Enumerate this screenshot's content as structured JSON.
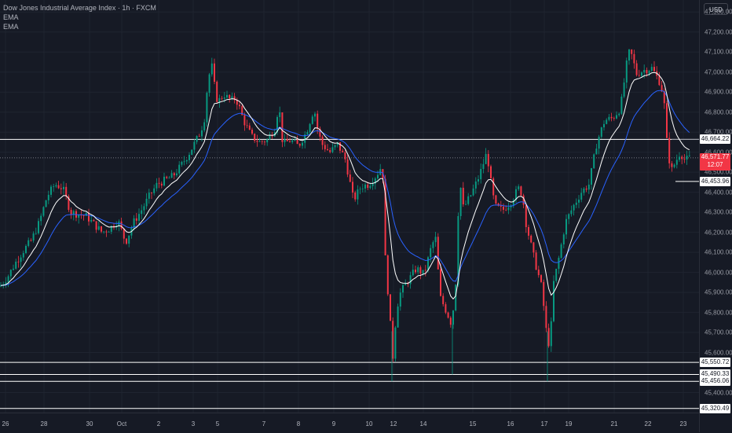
{
  "legend": {
    "title": "Dow Jones Industrial Average Index · 1h · FXCM",
    "ema1": "EMA",
    "ema2": "EMA"
  },
  "currency_button": "USD",
  "price_axis": {
    "ticks": [
      "47,300.00",
      "47,200.00",
      "47,100.00",
      "47,000.00",
      "46,900.00",
      "46,800.00",
      "46,700.00",
      "46,600.00",
      "46,500.00",
      "46,400.00",
      "46,300.00",
      "46,200.00",
      "46,100.00",
      "46,000.00",
      "45,900.00",
      "45,800.00",
      "45,700.00",
      "45,600.00",
      "45,400.00"
    ],
    "level_labels": [
      "46,664.22",
      "46,453.96",
      "45,550.72",
      "45,490.33",
      "45,456.06",
      "45,320.49"
    ],
    "current_price": "46,571.77",
    "countdown": "12:07"
  },
  "time_axis": {
    "labels": [
      "26",
      "28",
      "30",
      "Oct",
      "2",
      "3",
      "5",
      "7",
      "8",
      "9",
      "10",
      "12",
      "14",
      "15",
      "16",
      "17",
      "19",
      "21",
      "22",
      "23"
    ]
  },
  "colors": {
    "background": "#161a25",
    "grid": "#1f2430",
    "up_candle": "#089981",
    "down_candle": "#f23645",
    "ema_fast": "#ffffff",
    "ema_slow": "#2962ff",
    "level_line": "#ffffff"
  },
  "chart_data": {
    "type": "candlestick",
    "symbol": "Dow Jones Industrial Average Index",
    "interval": "1h",
    "source": "FXCM",
    "currency": "USD",
    "ylim": [
      45300,
      47360
    ],
    "x_labels": [
      "26",
      "28",
      "30",
      "Oct",
      "2",
      "3",
      "5",
      "7",
      "8",
      "9",
      "10",
      "12",
      "14",
      "15",
      "16",
      "17",
      "19",
      "21",
      "22",
      "23"
    ],
    "horizontal_levels": [
      46664.22,
      46453.96,
      45550.72,
      45490.33,
      45456.06,
      45320.49
    ],
    "current_price": 46571.77,
    "price_path_waypoints": [
      [
        0,
        45930
      ],
      [
        10,
        45980
      ],
      [
        20,
        46050
      ],
      [
        30,
        46110
      ],
      [
        40,
        46160
      ],
      [
        50,
        46250
      ],
      [
        60,
        46380
      ],
      [
        70,
        46440
      ],
      [
        80,
        46420
      ],
      [
        90,
        46300
      ],
      [
        100,
        46290
      ],
      [
        110,
        46280
      ],
      [
        120,
        46240
      ],
      [
        130,
        46200
      ],
      [
        140,
        46220
      ],
      [
        150,
        46260
      ],
      [
        160,
        46150
      ],
      [
        170,
        46250
      ],
      [
        180,
        46310
      ],
      [
        190,
        46380
      ],
      [
        200,
        46440
      ],
      [
        210,
        46460
      ],
      [
        220,
        46480
      ],
      [
        230,
        46530
      ],
      [
        240,
        46590
      ],
      [
        250,
        46660
      ],
      [
        255,
        46700
      ],
      [
        260,
        46760
      ],
      [
        265,
        46970
      ],
      [
        270,
        47030
      ],
      [
        275,
        46870
      ],
      [
        280,
        46860
      ],
      [
        285,
        46890
      ],
      [
        290,
        46870
      ],
      [
        295,
        46860
      ],
      [
        300,
        46870
      ],
      [
        305,
        46820
      ],
      [
        310,
        46760
      ],
      [
        320,
        46680
      ],
      [
        330,
        46650
      ],
      [
        340,
        46660
      ],
      [
        350,
        46720
      ],
      [
        355,
        46840
      ],
      [
        360,
        46640
      ],
      [
        370,
        46660
      ],
      [
        380,
        46630
      ],
      [
        390,
        46700
      ],
      [
        400,
        46820
      ],
      [
        405,
        46700
      ],
      [
        410,
        46640
      ],
      [
        420,
        46600
      ],
      [
        430,
        46640
      ],
      [
        440,
        46560
      ],
      [
        450,
        46360
      ],
      [
        460,
        46430
      ],
      [
        470,
        46440
      ],
      [
        480,
        46490
      ],
      [
        487,
        46540
      ],
      [
        490,
        46100
      ],
      [
        495,
        45850
      ],
      [
        500,
        45570
      ],
      [
        505,
        45820
      ],
      [
        510,
        45900
      ],
      [
        520,
        45960
      ],
      [
        530,
        46020
      ],
      [
        540,
        45990
      ],
      [
        550,
        46140
      ],
      [
        555,
        46170
      ],
      [
        560,
        45880
      ],
      [
        570,
        45790
      ],
      [
        575,
        45740
      ],
      [
        580,
        45930
      ],
      [
        585,
        46470
      ],
      [
        590,
        46320
      ],
      [
        600,
        46390
      ],
      [
        610,
        46480
      ],
      [
        620,
        46600
      ],
      [
        625,
        46450
      ],
      [
        630,
        46330
      ],
      [
        640,
        46310
      ],
      [
        650,
        46350
      ],
      [
        660,
        46420
      ],
      [
        665,
        46390
      ],
      [
        670,
        46240
      ],
      [
        680,
        46070
      ],
      [
        690,
        45920
      ],
      [
        695,
        45720
      ],
      [
        700,
        45620
      ],
      [
        705,
        45950
      ],
      [
        710,
        46040
      ],
      [
        720,
        46250
      ],
      [
        730,
        46330
      ],
      [
        740,
        46400
      ],
      [
        750,
        46440
      ],
      [
        760,
        46650
      ],
      [
        770,
        46760
      ],
      [
        780,
        46770
      ],
      [
        790,
        46820
      ],
      [
        795,
        46960
      ],
      [
        800,
        47100
      ],
      [
        805,
        47080
      ],
      [
        810,
        46990
      ],
      [
        820,
        47010
      ],
      [
        830,
        47020
      ],
      [
        840,
        46950
      ],
      [
        845,
        46880
      ],
      [
        850,
        46600
      ],
      [
        855,
        46510
      ],
      [
        860,
        46550
      ],
      [
        866,
        46600
      ],
      [
        872,
        46560
      ],
      [
        878,
        46572
      ]
    ]
  }
}
